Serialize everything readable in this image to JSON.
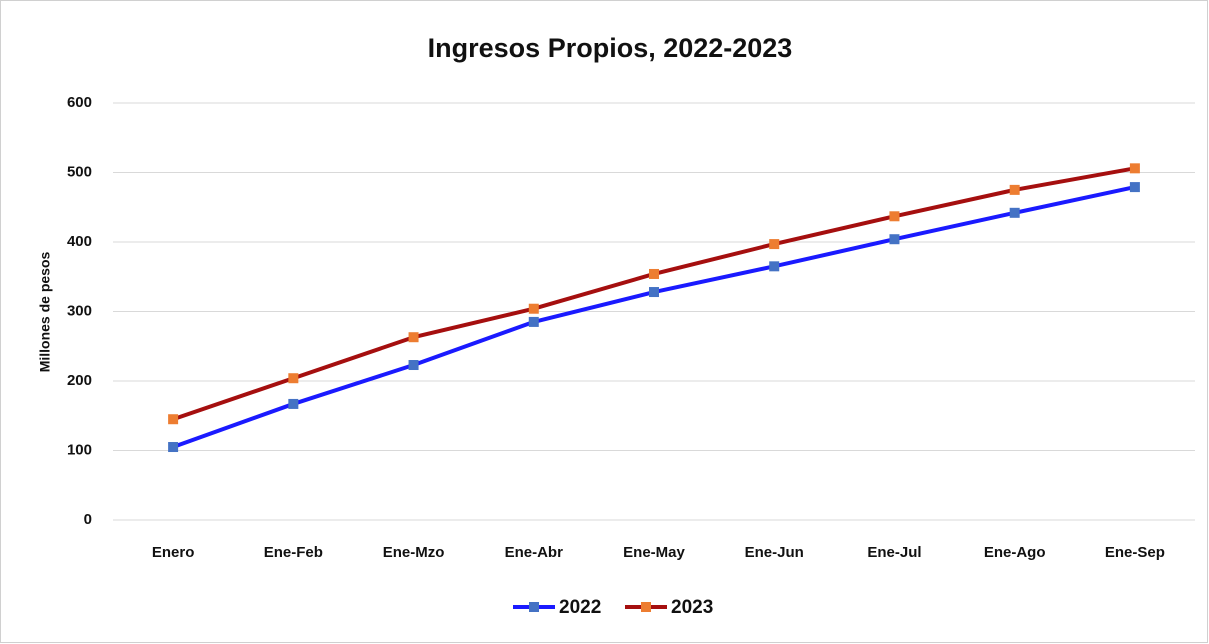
{
  "chart_data": {
    "type": "line",
    "title": "Ingresos Propios, 2022-2023",
    "y_label": "Millones de pesos",
    "categories": [
      "Enero",
      "Ene-Feb",
      "Ene-Mzo",
      "Ene-Abr",
      "Ene-May",
      "Ene-Jun",
      "Ene-Jul",
      "Ene-Ago",
      "Ene-Sep"
    ],
    "series": [
      {
        "name": "2022",
        "color": "#1a1aff",
        "marker_color": "#4472c4",
        "values": [
          105,
          167,
          223,
          285,
          328,
          365,
          404,
          442,
          479
        ]
      },
      {
        "name": "2023",
        "color": "#a50f0f",
        "marker_color": "#ed7d31",
        "values": [
          145,
          204,
          263,
          304,
          354,
          397,
          437,
          475,
          506
        ]
      }
    ],
    "ylim": [
      0,
      600
    ],
    "yticks": [
      0,
      100,
      200,
      300,
      400,
      500,
      600
    ],
    "grid": true,
    "legend": "bottom"
  }
}
